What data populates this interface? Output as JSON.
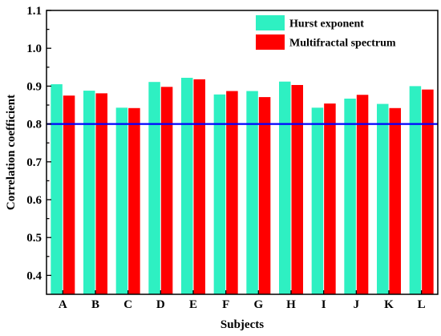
{
  "chart_data": {
    "type": "bar",
    "xlabel": "Subjects",
    "ylabel": "Correlation coefficient",
    "categories": [
      "A",
      "B",
      "C",
      "D",
      "E",
      "F",
      "G",
      "H",
      "I",
      "J",
      "K",
      "L"
    ],
    "series": [
      {
        "name": "Hurst exponent",
        "color": "#2EF0C2",
        "values": [
          0.905,
          0.888,
          0.843,
          0.911,
          0.922,
          0.878,
          0.887,
          0.912,
          0.843,
          0.867,
          0.853,
          0.9
        ]
      },
      {
        "name": "Multifractal spectrum",
        "color": "#FF0000",
        "values": [
          0.875,
          0.881,
          0.842,
          0.898,
          0.918,
          0.887,
          0.871,
          0.903,
          0.854,
          0.877,
          0.842,
          0.891
        ]
      }
    ],
    "ylim": [
      0.35,
      1.1
    ],
    "yticks": [
      "0.4",
      "0.5",
      "0.6",
      "0.7",
      "0.8",
      "0.9",
      "1.0",
      "1.1"
    ],
    "reference_line": {
      "value": 0.8,
      "color": "#0000FF"
    },
    "grid": false,
    "legend_position": "top-right"
  }
}
